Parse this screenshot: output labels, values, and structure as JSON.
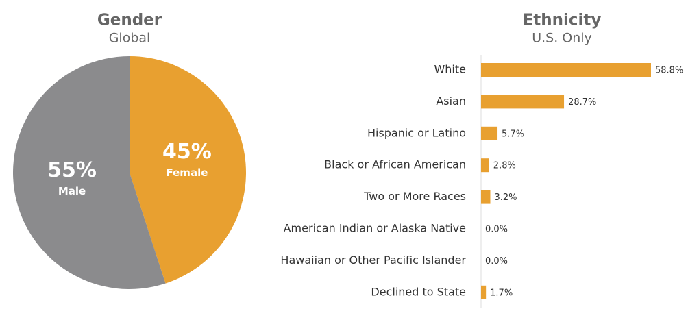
{
  "chart_data": [
    {
      "type": "pie",
      "title": "Gender",
      "subtitle": "Global",
      "categories": [
        "Female",
        "Male"
      ],
      "values": [
        45,
        55
      ],
      "value_labels": [
        "45%",
        "55%"
      ],
      "colors": [
        "#e8a030",
        "#8b8b8d"
      ]
    },
    {
      "type": "bar",
      "title": "Ethnicity",
      "subtitle": "U.S. Only",
      "categories": [
        "White",
        "Asian",
        "Hispanic or Latino",
        "Black or African American",
        "Two or More Races",
        "American Indian or Alaska Native",
        "Hawaiian or Other Pacific Islander",
        "Declined to State"
      ],
      "values": [
        58.8,
        28.7,
        5.7,
        2.8,
        3.2,
        0.0,
        0.0,
        1.7
      ],
      "value_labels": [
        "58.8%",
        "28.7%",
        "5.7%",
        "2.8%",
        "3.2%",
        "0.0%",
        "0.0%",
        "1.7%"
      ],
      "color": "#e8a030"
    }
  ]
}
